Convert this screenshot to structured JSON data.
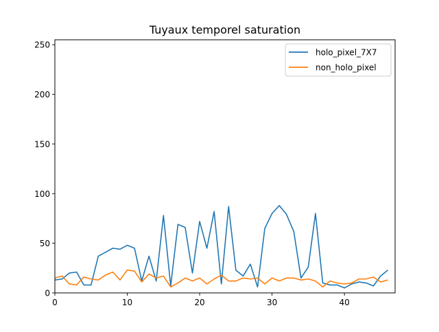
{
  "chart_data": {
    "type": "line",
    "title": "Tuyaux temporel saturation",
    "xlabel": "",
    "ylabel": "",
    "xlim": [
      0,
      47
    ],
    "ylim": [
      0,
      255
    ],
    "x_ticks": [
      0,
      10,
      20,
      30,
      40
    ],
    "y_ticks": [
      0,
      50,
      100,
      150,
      200,
      250
    ],
    "legend_position": "top-right",
    "grid": false,
    "x": [
      0,
      1,
      2,
      3,
      4,
      5,
      6,
      7,
      8,
      9,
      10,
      11,
      12,
      13,
      14,
      15,
      16,
      17,
      18,
      19,
      20,
      21,
      22,
      23,
      24,
      25,
      26,
      27,
      28,
      29,
      30,
      31,
      32,
      33,
      34,
      35,
      36,
      37,
      38,
      39,
      40,
      41,
      42,
      43,
      44,
      45,
      46
    ],
    "series": [
      {
        "name": "holo_pixel_7X7",
        "color": "#1f77b4",
        "values": [
          13,
          14,
          20,
          21,
          8,
          8,
          37,
          41,
          45,
          44,
          48,
          45,
          12,
          37,
          12,
          78,
          7,
          69,
          66,
          20,
          72,
          45,
          82,
          9,
          87,
          23,
          17,
          29,
          6,
          65,
          80,
          88,
          79,
          62,
          15,
          26,
          80,
          10,
          8,
          8,
          5,
          9,
          11,
          10,
          7,
          17,
          23
        ]
      },
      {
        "name": "non_holo_pixel",
        "color": "#ff7f0e",
        "values": [
          15,
          17,
          9,
          8,
          16,
          14,
          13,
          18,
          21,
          13,
          23,
          22,
          11,
          19,
          15,
          17,
          6,
          10,
          15,
          12,
          15,
          9,
          14,
          18,
          12,
          12,
          15,
          14,
          15,
          9,
          15,
          12,
          15,
          15,
          13,
          14,
          12,
          6,
          12,
          10,
          9,
          10,
          14,
          14,
          16,
          11,
          13
        ]
      }
    ]
  }
}
